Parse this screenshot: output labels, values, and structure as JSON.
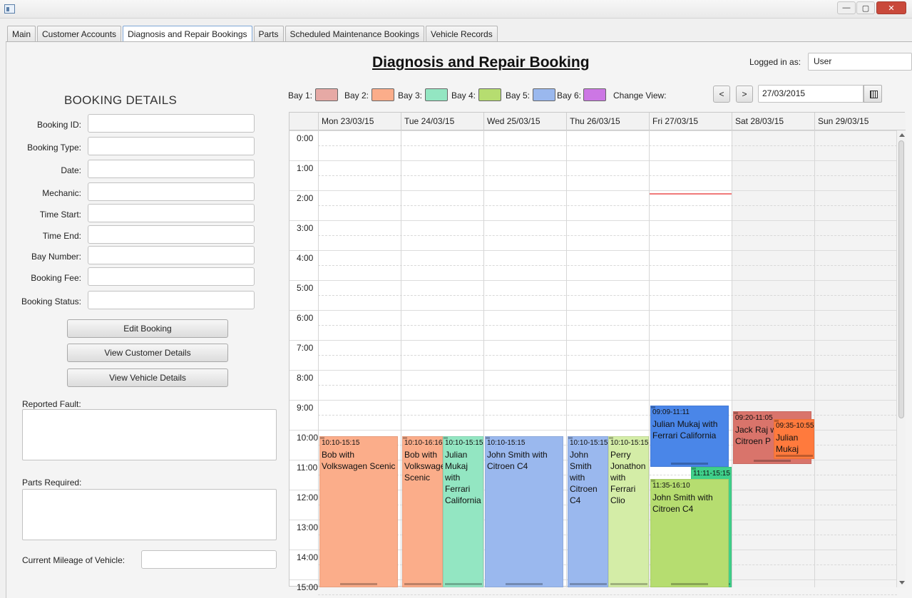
{
  "window": {
    "minimize_glyph": "—",
    "maximize_glyph": "▢",
    "close_glyph": "✕"
  },
  "tabs": [
    {
      "label": "Main",
      "active": false
    },
    {
      "label": "Customer Accounts",
      "active": false
    },
    {
      "label": "Diagnosis and Repair Bookings",
      "active": true
    },
    {
      "label": "Parts",
      "active": false
    },
    {
      "label": "Scheduled Maintenance Bookings",
      "active": false
    },
    {
      "label": "Vehicle Records",
      "active": false
    }
  ],
  "page": {
    "title": "Diagnosis and Repair Booking",
    "logged_in_label": "Logged in as:",
    "logged_in_value": "User"
  },
  "booking_details": {
    "title": "BOOKING DETAILS",
    "fields": [
      {
        "label": "Booking ID:",
        "value": ""
      },
      {
        "label": "Booking Type:",
        "value": ""
      },
      {
        "label": "Date:",
        "value": ""
      },
      {
        "label": "Mechanic:",
        "value": ""
      },
      {
        "label": "Time Start:",
        "value": ""
      },
      {
        "label": "Time End:",
        "value": ""
      },
      {
        "label": "Bay Number:",
        "value": ""
      },
      {
        "label": "Booking Fee:",
        "value": ""
      },
      {
        "label": "Booking Status:",
        "value": ""
      }
    ],
    "buttons": {
      "edit": "Edit Booking",
      "customer": "View Customer Details",
      "vehicle": "View Vehicle Details"
    },
    "reported_fault_label": "Reported Fault:",
    "parts_required_label": "Parts Required:",
    "mileage_label": "Current Mileage of Vehicle:"
  },
  "legend": {
    "bays": [
      {
        "label": "Bay 1:",
        "color": "#e6a9a5"
      },
      {
        "label": "Bay 2:",
        "color": "#fbad8a"
      },
      {
        "label": "Bay 3:",
        "color": "#93e6c2"
      },
      {
        "label": "Bay 4:",
        "color": "#b6dd70"
      },
      {
        "label": "Bay 5:",
        "color": "#9ab8ee"
      },
      {
        "label": "Bay 6:",
        "color": "#cc77e4"
      }
    ],
    "change_view": "Change View:"
  },
  "nav": {
    "prev": "<",
    "next": ">",
    "date": "27/03/2015",
    "calendar_icon": "calendar-icon"
  },
  "calendar": {
    "days": [
      "Mon 23/03/15",
      "Tue 24/03/15",
      "Wed 25/03/15",
      "Thu 26/03/15",
      "Fri 27/03/15",
      "Sat 28/03/15",
      "Sun 29/03/15"
    ],
    "hours": [
      "0:00",
      "1:00",
      "2:00",
      "3:00",
      "4:00",
      "5:00",
      "6:00",
      "7:00",
      "8:00",
      "9:00",
      "10:00",
      "11:00",
      "12:00",
      "13:00",
      "14:00",
      "15:00"
    ],
    "appointments": [
      {
        "day": 0,
        "start": "10:10",
        "end": "15:15",
        "time": "10:10-15:15",
        "text": "Bob with Volkswagen Scenic",
        "color": "#fbad8a",
        "lane": 0,
        "lanes": 1
      },
      {
        "day": 1,
        "start": "10:10",
        "end": "16:16",
        "time": "10:10-16:16",
        "text": "Bob with Volkswagen Scenic",
        "color": "#fbad8a",
        "lane": 0,
        "lanes": 2
      },
      {
        "day": 1,
        "start": "10:10",
        "end": "15:15",
        "time": "10:10-15:15",
        "text": "Julian Mukaj with Ferrari California",
        "color": "#93e6c2",
        "lane": 1,
        "lanes": 2
      },
      {
        "day": 2,
        "start": "10:10",
        "end": "15:15",
        "time": "10:10-15:15",
        "text": "John Smith with Citroen C4",
        "color": "#9ab8ee",
        "lane": 0,
        "lanes": 1
      },
      {
        "day": 3,
        "start": "10:10",
        "end": "15:15",
        "time": "10:10-15:15",
        "text": "John Smith with Citroen C4",
        "color": "#9ab8ee",
        "lane": 0,
        "lanes": 2
      },
      {
        "day": 3,
        "start": "10:10",
        "end": "15:15",
        "time": "10:10-15:15",
        "text": "Perry Jonathon with Ferrari Clio",
        "color": "#d4eda7",
        "lane": 1,
        "lanes": 2
      },
      {
        "day": 4,
        "start": "09:09",
        "end": "11:11",
        "time": "09:09-11:11",
        "text": "Julian Mukaj with Ferrari California",
        "color": "#4a86e8",
        "lane": 0,
        "lanes": 1
      },
      {
        "day": 4,
        "start": "11:11",
        "end": "15:15",
        "time": "11:11-15:15",
        "text": "",
        "color": "#3fd08a",
        "lane": 1,
        "lanes": 2
      },
      {
        "day": 4,
        "start": "11:35",
        "end": "16:10",
        "time": "11:35-16:10",
        "text": "John Smith with Citroen C4",
        "color": "#b6dd70",
        "lane": 0,
        "lanes": 1
      },
      {
        "day": 5,
        "start": "09:20",
        "end": "11:05",
        "time": "09:20-11:05",
        "text": "Jack Raj with Citroen P",
        "color": "#d9746b",
        "lane": 0,
        "lanes": 1
      },
      {
        "day": 5,
        "start": "09:35",
        "end": "10:55",
        "time": "09:35-10:55",
        "text": "Julian Mukaj",
        "color": "#ff7a3d",
        "lane": 1,
        "lanes": 2
      }
    ],
    "now_marker": {
      "day": 4,
      "time": "02:00"
    }
  }
}
